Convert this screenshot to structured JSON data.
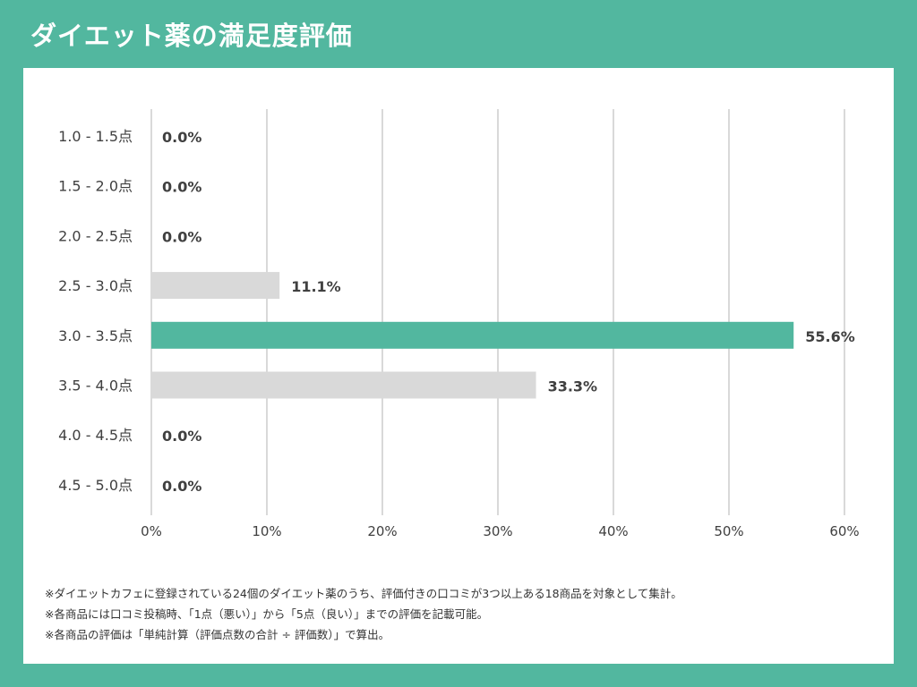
{
  "header": {
    "title": "ダイエット薬の満足度評価"
  },
  "colors": {
    "background": "#52b79f",
    "accent_bar": "#52b79f",
    "neutral_bar": "#d9d9d9",
    "gridline": "#d9d9d9",
    "text": "#404040"
  },
  "chart_data": {
    "type": "bar",
    "orientation": "horizontal",
    "categories": [
      "1.0 - 1.5点",
      "1.5 - 2.0点",
      "2.0 - 2.5点",
      "2.5 - 3.0点",
      "3.0 - 3.5点",
      "3.5 - 4.0点",
      "4.0 - 4.5点",
      "4.5 - 5.0点"
    ],
    "values": [
      0.0,
      0.0,
      0.0,
      11.1,
      55.6,
      33.3,
      0.0,
      0.0
    ],
    "value_labels": [
      "0.0%",
      "0.0%",
      "0.0%",
      "11.1%",
      "55.6%",
      "33.3%",
      "0.0%",
      "0.0%"
    ],
    "highlight_index": 4,
    "x_ticks": [
      "0%",
      "10%",
      "20%",
      "30%",
      "40%",
      "50%",
      "60%"
    ],
    "xlim": [
      0,
      60
    ],
    "grid": true,
    "title": "",
    "xlabel": "",
    "ylabel": ""
  },
  "notes": [
    "※ダイエットカフェに登録されている24個のダイエット薬のうち、評価付きの口コミが3つ以上ある18商品を対象として集計。",
    "※各商品には口コミ投稿時、「1点（悪い）」から「5点（良い）」までの評価を記載可能。",
    "※各商品の評価は「単純計算（評価点数の合計 ÷ 評価数）」で算出。"
  ]
}
